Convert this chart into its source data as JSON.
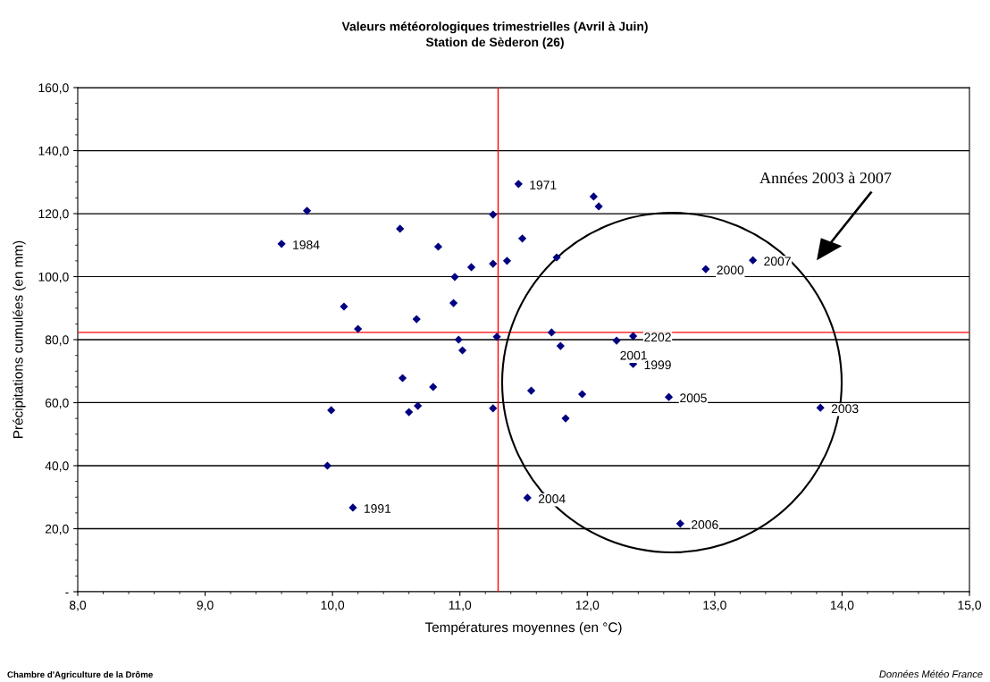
{
  "chart_data": {
    "type": "scatter",
    "title": "Valeurs météorologiques trimestrielles (Avril à Juin)",
    "subtitle": "Station de Sèderon (26)",
    "xlabel": "Températures moyennes (en °C)",
    "ylabel": "Précipitations cumulées (en mm)",
    "x": [
      9.6,
      9.8,
      10.53,
      10.83,
      10.09,
      10.2,
      10.66,
      10.95,
      10.96,
      11.09,
      11.26,
      11.26,
      11.37,
      11.49,
      11.46,
      12.05,
      12.09,
      11.76,
      10.99,
      11.02,
      11.29,
      10.55,
      10.79,
      9.99,
      10.6,
      10.67,
      11.26,
      9.96,
      10.16,
      11.53,
      11.56,
      11.96,
      11.83,
      11.72,
      11.79,
      12.23,
      12.36,
      12.36,
      12.93,
      13.3,
      12.64,
      13.83,
      12.73
    ],
    "values": [
      110.4,
      120.9,
      115.2,
      109.5,
      90.5,
      83.4,
      86.5,
      91.6,
      99.9,
      103.0,
      104.1,
      119.7,
      105.0,
      112.1,
      129.4,
      125.4,
      122.3,
      106.1,
      80.0,
      76.6,
      80.9,
      67.8,
      65.0,
      57.6,
      57.0,
      59.0,
      58.2,
      40.0,
      26.7,
      29.8,
      63.8,
      62.7,
      55.0,
      82.3,
      78.0,
      79.7,
      81.1,
      72.3,
      102.4,
      105.2,
      61.8,
      58.4,
      21.6
    ],
    "color": "#000080",
    "marker": "diamond",
    "xlim": [
      8.0,
      15.0
    ],
    "xticks": [
      {
        "value": 8,
        "label": "8,0"
      },
      {
        "value": 9,
        "label": "9,0"
      },
      {
        "value": 10,
        "label": "10,0"
      },
      {
        "value": 11,
        "label": "11,0"
      },
      {
        "value": 12,
        "label": "12,0"
      },
      {
        "value": 13,
        "label": "13,0"
      },
      {
        "value": 14,
        "label": "14,0"
      },
      {
        "value": 15,
        "label": "15,0"
      }
    ],
    "ylim": [
      0,
      160
    ],
    "yticks": [
      {
        "value": 0,
        "label": "-"
      },
      {
        "value": 20,
        "label": "20,0"
      },
      {
        "value": 40,
        "label": "40,0"
      },
      {
        "value": 60,
        "label": "60,0"
      },
      {
        "value": 80,
        "label": "80,0"
      },
      {
        "value": 100,
        "label": "100,0"
      },
      {
        "value": 120,
        "label": "120,0"
      },
      {
        "value": 140,
        "label": "140,0"
      },
      {
        "value": 160,
        "label": "160,0"
      }
    ],
    "grid": "y",
    "ref_lines": [
      {
        "axis": "x",
        "value": 11.3,
        "color": "#ff0000"
      },
      {
        "axis": "y",
        "value": 82.3,
        "color": "#ff0000"
      }
    ],
    "annotations": [
      {
        "text": "1984",
        "x": 9.6,
        "y": 110.4
      },
      {
        "text": "1971",
        "x": 11.46,
        "y": 129.4
      },
      {
        "text": "1991",
        "x": 10.16,
        "y": 26.7
      },
      {
        "text": "2004",
        "x": 11.53,
        "y": 29.8
      },
      {
        "text": "2202",
        "x": 12.36,
        "y": 81.1
      },
      {
        "text": "2001",
        "x": 12.23,
        "y": 79.7
      },
      {
        "text": "1999",
        "x": 12.36,
        "y": 72.3
      },
      {
        "text": "2000",
        "x": 12.93,
        "y": 102.4
      },
      {
        "text": "2007",
        "x": 13.3,
        "y": 105.2
      },
      {
        "text": "2005",
        "x": 12.64,
        "y": 61.8
      },
      {
        "text": "2003",
        "x": 13.83,
        "y": 58.4
      },
      {
        "text": "2006",
        "x": 12.73,
        "y": 21.6
      },
      "Années 2003 à 2007",
      "Chambre d'Agriculture de la Drôme",
      "Données Météo France"
    ]
  }
}
